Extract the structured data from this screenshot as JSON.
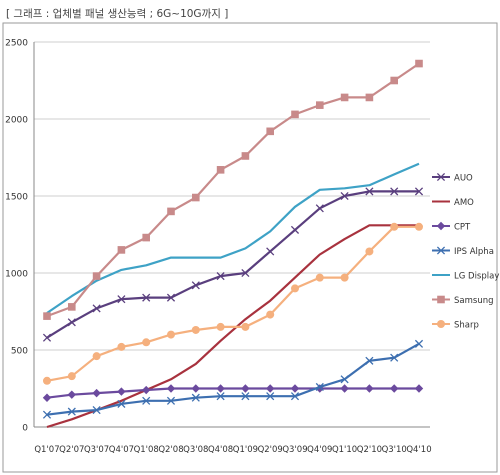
{
  "caption": "[ 그래프 : 업체별 패널 생산능력 ; 6G~10G까지 ]",
  "chart_data": {
    "type": "line",
    "title": "",
    "xlabel": "",
    "ylabel": "",
    "ylim": [
      0,
      2500
    ],
    "yticks": [
      0,
      500,
      1000,
      1500,
      2000,
      2500
    ],
    "grid": true,
    "legend_position": "right",
    "categories": [
      "Q1'07",
      "Q2'07",
      "Q3'07",
      "Q4'07",
      "Q1'08",
      "Q2'08",
      "Q3'08",
      "Q4'08",
      "Q1'09",
      "Q2'09",
      "Q3'09",
      "Q4'09",
      "Q1'10",
      "Q2'10",
      "Q3'10",
      "Q4'10"
    ],
    "series": [
      {
        "name": "AUO",
        "color": "#5a3f7e",
        "marker": "x",
        "values": [
          580,
          680,
          770,
          830,
          840,
          840,
          920,
          980,
          1000,
          1140,
          1280,
          1420,
          1500,
          1530,
          1530,
          1530
        ]
      },
      {
        "name": "AMO",
        "color": "#a8323e",
        "marker": "none",
        "values": [
          0,
          50,
          110,
          170,
          240,
          310,
          410,
          560,
          700,
          820,
          970,
          1120,
          1220,
          1310,
          1310,
          1310
        ]
      },
      {
        "name": "CPT",
        "color": "#6b4a9e",
        "marker": "diamond",
        "values": [
          190,
          210,
          220,
          230,
          240,
          250,
          250,
          250,
          250,
          250,
          250,
          250,
          250,
          250,
          250,
          250
        ]
      },
      {
        "name": "IPS Alpha",
        "color": "#3d6fb0",
        "marker": "x",
        "values": [
          80,
          100,
          110,
          150,
          170,
          170,
          190,
          200,
          200,
          200,
          200,
          260,
          310,
          430,
          450,
          540
        ]
      },
      {
        "name": "LG Display",
        "color": "#3ea2c6",
        "marker": "none",
        "values": [
          740,
          850,
          950,
          1020,
          1050,
          1100,
          1100,
          1100,
          1160,
          1270,
          1430,
          1540,
          1550,
          1570,
          1640,
          1710
        ]
      },
      {
        "name": "Samsung",
        "color": "#c88a8a",
        "marker": "square",
        "values": [
          720,
          780,
          980,
          1150,
          1230,
          1400,
          1490,
          1670,
          1760,
          1920,
          2030,
          2090,
          2140,
          2140,
          2250,
          2360
        ]
      },
      {
        "name": "Sharp",
        "color": "#f5b07e",
        "marker": "circle",
        "values": [
          300,
          330,
          460,
          520,
          550,
          600,
          630,
          650,
          650,
          730,
          900,
          970,
          970,
          1140,
          1300,
          1300
        ]
      }
    ]
  }
}
